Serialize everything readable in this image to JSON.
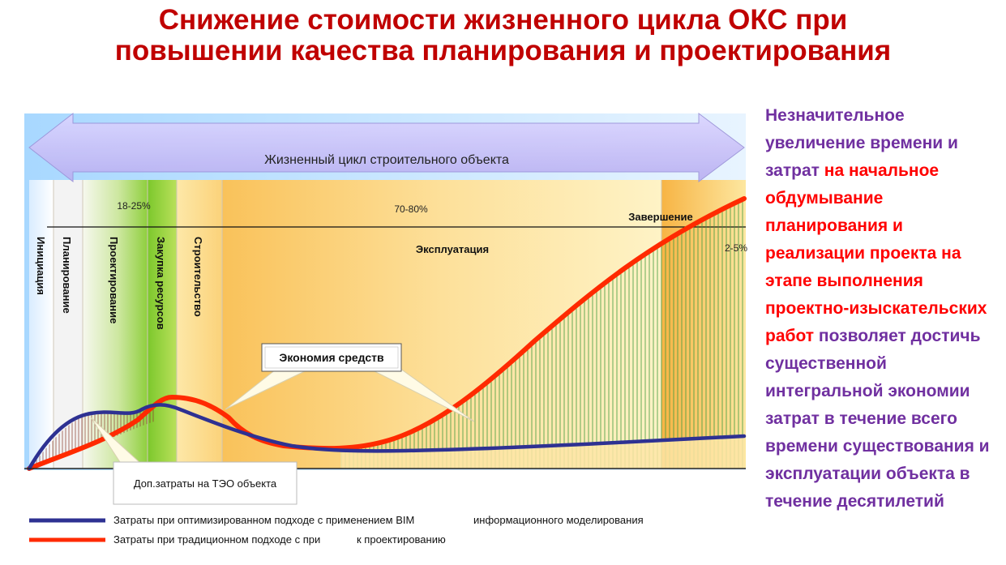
{
  "title": {
    "line1": "Снижение стоимости жизненного цикла ОКС при",
    "line2": "повышении качества планирования и проектирования"
  },
  "arrow_label": "Жизненный цикл строительного объекта",
  "phases": [
    {
      "label": "Инициация"
    },
    {
      "label": "Планирование"
    },
    {
      "label": "Проектирование"
    },
    {
      "label": "Закупка ресурсов"
    },
    {
      "label": "Строительство"
    },
    {
      "label": "Эксплуатация"
    },
    {
      "label": "Завершение"
    }
  ],
  "percentages": {
    "design": "18-25%",
    "operation": "70-80%",
    "completion": "2-5%"
  },
  "callouts": {
    "savings": "Экономия средств",
    "extra_costs": "Доп.затраты на ТЭО объекта"
  },
  "legend": [
    {
      "text_a": "Затраты при оптимизированном подходе с применением BIM",
      "text_b": "информационного моделирования",
      "color": "#2e3192"
    },
    {
      "text_a": "Затраты при традиционном подходе с при",
      "text_b": "к проектированию",
      "color": "#ff2a00"
    }
  ],
  "side_text": [
    {
      "text": "Незначительное увеличение времени и затрат ",
      "color": "#7030a0"
    },
    {
      "text": "на начальное обдумывание планирования и реализации проекта на этапе выполнения проектно-изыскательских работ ",
      "color": "#ff0000"
    },
    {
      "text": "позволяет достичь существенной интегральной экономии затрат в течение всего времени существования и эксплуатации объекта в течение десятилетий",
      "color": "#7030a0"
    }
  ]
}
